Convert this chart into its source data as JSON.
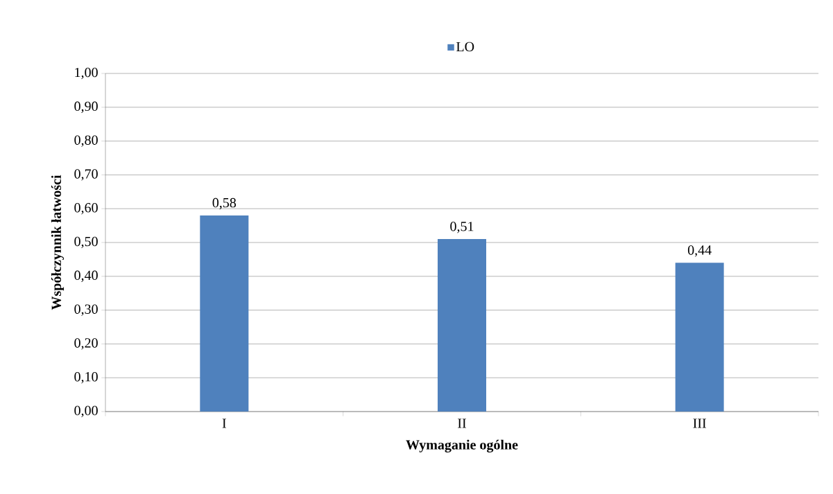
{
  "chart_data": {
    "type": "bar",
    "xlabel": "Wymaganie ogólne",
    "ylabel": "Współczynnik łatwości",
    "categories": [
      "I",
      "II",
      "III"
    ],
    "series": [
      {
        "name": "LO",
        "color": "#4f81bd",
        "values": [
          0.58,
          0.51,
          0.44
        ],
        "value_labels": [
          "0,58",
          "0,51",
          "0,44"
        ]
      }
    ],
    "ylim": [
      0,
      1
    ],
    "yticks": [
      {
        "value": 0,
        "label": "0,00"
      },
      {
        "value": 0.1,
        "label": "0,10"
      },
      {
        "value": 0.2,
        "label": "0,20"
      },
      {
        "value": 0.3,
        "label": "0,30"
      },
      {
        "value": 0.4,
        "label": "0,40"
      },
      {
        "value": 0.5,
        "label": "0,50"
      },
      {
        "value": 0.6,
        "label": "0,60"
      },
      {
        "value": 0.7,
        "label": "0,70"
      },
      {
        "value": 0.8,
        "label": "0,80"
      },
      {
        "value": 0.9,
        "label": "0,90"
      },
      {
        "value": 1,
        "label": "1,00"
      }
    ],
    "grid": "y",
    "legend": "top"
  }
}
